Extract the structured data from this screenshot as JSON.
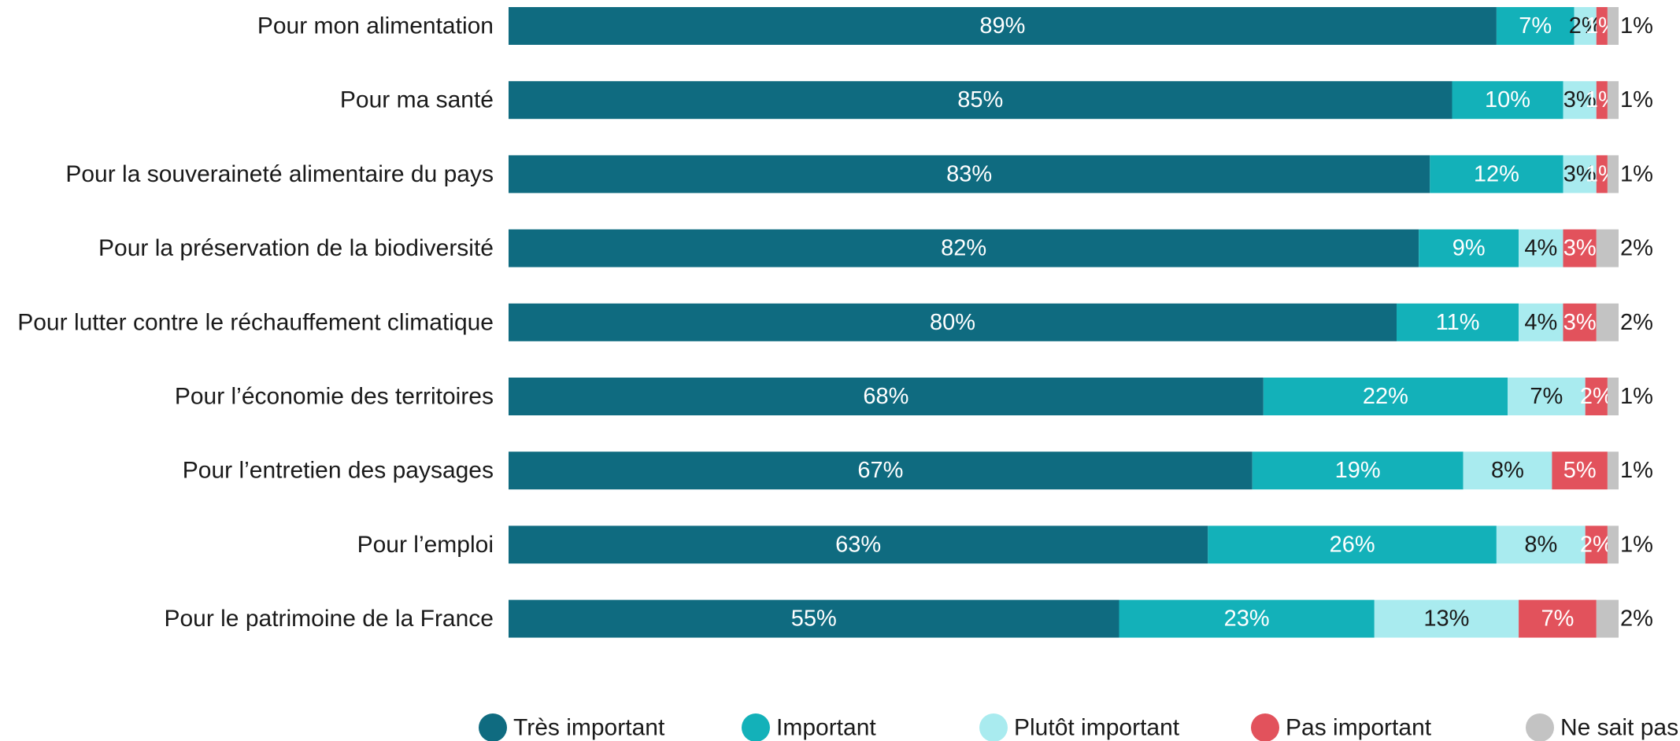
{
  "chart_data": {
    "type": "bar",
    "orientation": "horizontal",
    "stacked": true,
    "title": "",
    "xlabel": "",
    "ylabel": "",
    "xlim": [
      0,
      100
    ],
    "grid": false,
    "legend_position": "bottom",
    "categories": [
      "Pour mon alimentation",
      "Pour ma santé",
      "Pour la souveraineté alimentaire du pays",
      "Pour la préservation de la biodiversité",
      "Pour lutter contre le réchauffement climatique",
      "Pour l’économie des territoires",
      "Pour l’entretien des paysages",
      "Pour l’emploi",
      "Pour le patrimoine de la France"
    ],
    "series": [
      {
        "name": "Très important",
        "color": "#0f6b80",
        "label_color": "#ffffff",
        "values": [
          89,
          85,
          83,
          82,
          80,
          68,
          67,
          63,
          55
        ],
        "labels": [
          "89%",
          "85%",
          "83%",
          "82%",
          "80%",
          "68%",
          "67%",
          "63%",
          "55%"
        ]
      },
      {
        "name": "Important",
        "color": "#13b1b9",
        "label_color": "#ffffff",
        "values": [
          7,
          10,
          12,
          9,
          11,
          22,
          19,
          26,
          23
        ],
        "labels": [
          "7%",
          "10%",
          "12%",
          "9%",
          "11%",
          "22%",
          "19%",
          "26%",
          "23%"
        ]
      },
      {
        "name": "Plutôt important",
        "color": "#a9ebef",
        "label_color": "#1a1a1a",
        "values": [
          2,
          3,
          3,
          4,
          4,
          7,
          8,
          8,
          13
        ],
        "labels": [
          "2%",
          "3%",
          "3%",
          "4%",
          "4%",
          "7%",
          "8%",
          "8%",
          "13%"
        ]
      },
      {
        "name": "Pas important",
        "color": "#e2525c",
        "label_color": "#ffffff",
        "values": [
          1,
          1,
          1,
          3,
          3,
          2,
          5,
          2,
          7
        ],
        "labels": [
          "1%",
          "1%",
          "1%",
          "3%",
          "3%",
          "2%",
          "5%",
          "2%",
          "7%"
        ]
      },
      {
        "name": "Ne sait pas",
        "color": "#c3c3c3",
        "label_color": "#1a1a1a",
        "values": [
          1,
          1,
          1,
          2,
          2,
          1,
          1,
          1,
          2
        ],
        "labels": [
          "1%",
          "1%",
          "1%",
          "2%",
          "2%",
          "1%",
          "1%",
          "1%",
          "2%"
        ]
      }
    ]
  }
}
